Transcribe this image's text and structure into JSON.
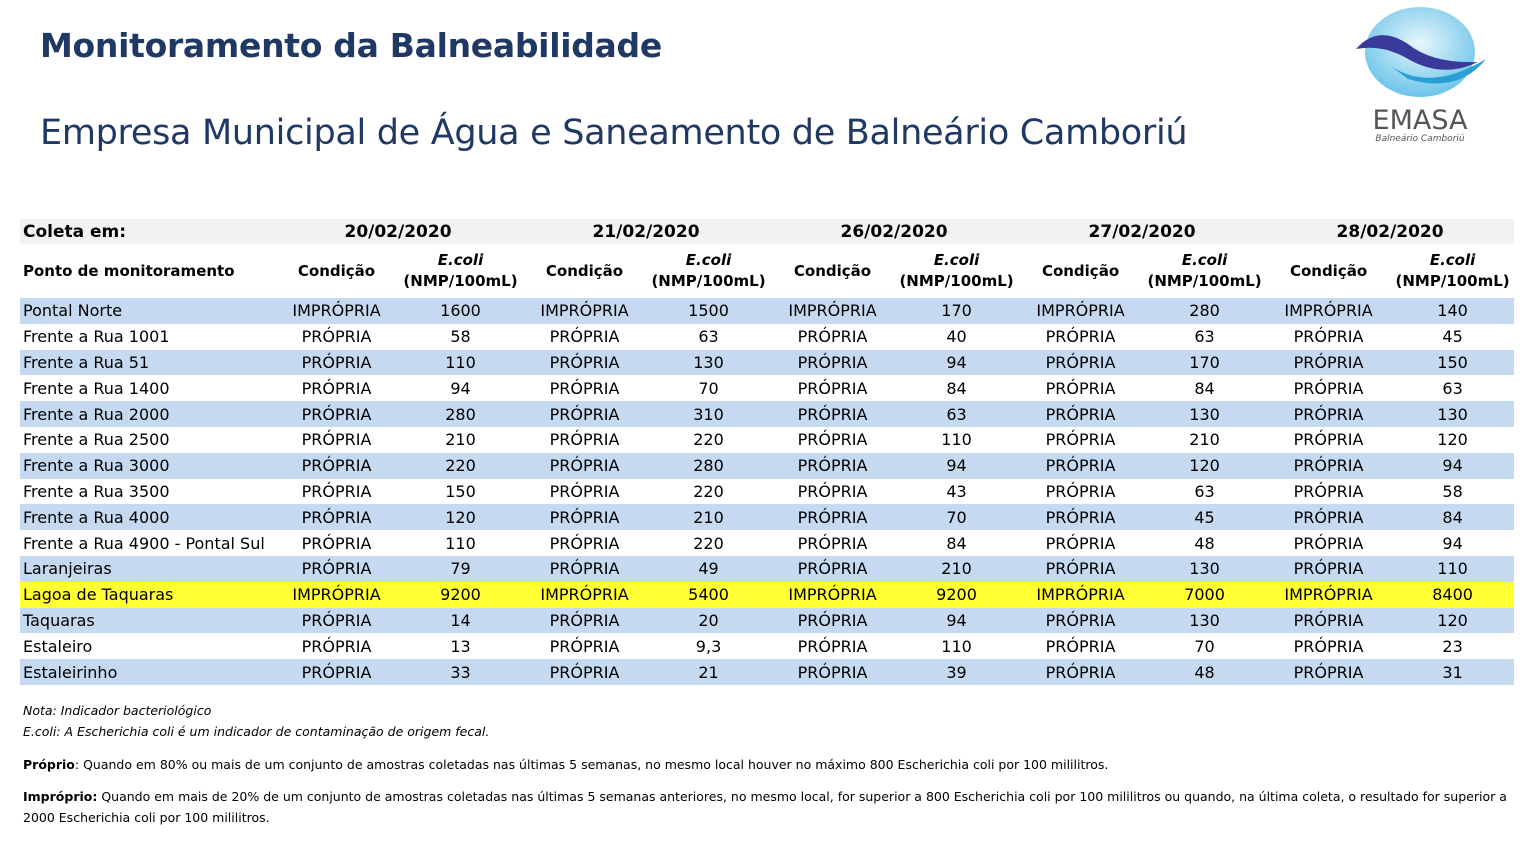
{
  "header": {
    "title": "Monitoramento da Balneabilidade",
    "subtitle": "Empresa Municipal de Água e Saneamento de Balneário Camboriú"
  },
  "logo": {
    "name": "EMASA",
    "place": "Balneário Camboriú"
  },
  "table": {
    "coleta_label": "Coleta em:",
    "dates": [
      "20/02/2020",
      "21/02/2020",
      "26/02/2020",
      "27/02/2020",
      "28/02/2020"
    ],
    "point_label": "Ponto de monitoramento",
    "cond_label": "Condição",
    "ecoli_label": "E.coli",
    "unit_label": "(NMP/100mL)",
    "rows": [
      {
        "name": "Pontal Norte",
        "cells": [
          [
            "IMPRÓPRIA",
            1600
          ],
          [
            "IMPRÓPRIA",
            1500
          ],
          [
            "IMPRÓPRIA",
            170
          ],
          [
            "IMPRÓPRIA",
            280
          ],
          [
            "IMPRÓPRIA",
            140
          ]
        ]
      },
      {
        "name": "Frente a Rua 1001",
        "cells": [
          [
            "PRÓPRIA",
            58
          ],
          [
            "PRÓPRIA",
            63
          ],
          [
            "PRÓPRIA",
            40
          ],
          [
            "PRÓPRIA",
            63
          ],
          [
            "PRÓPRIA",
            45
          ]
        ]
      },
      {
        "name": "Frente a Rua 51",
        "cells": [
          [
            "PRÓPRIA",
            110
          ],
          [
            "PRÓPRIA",
            130
          ],
          [
            "PRÓPRIA",
            94
          ],
          [
            "PRÓPRIA",
            170
          ],
          [
            "PRÓPRIA",
            150
          ]
        ]
      },
      {
        "name": "Frente a Rua 1400",
        "cells": [
          [
            "PRÓPRIA",
            94
          ],
          [
            "PRÓPRIA",
            70
          ],
          [
            "PRÓPRIA",
            84
          ],
          [
            "PRÓPRIA",
            84
          ],
          [
            "PRÓPRIA",
            63
          ]
        ]
      },
      {
        "name": "Frente a Rua 2000",
        "cells": [
          [
            "PRÓPRIA",
            280
          ],
          [
            "PRÓPRIA",
            310
          ],
          [
            "PRÓPRIA",
            63
          ],
          [
            "PRÓPRIA",
            130
          ],
          [
            "PRÓPRIA",
            130
          ]
        ]
      },
      {
        "name": "Frente a Rua 2500",
        "cells": [
          [
            "PRÓPRIA",
            210
          ],
          [
            "PRÓPRIA",
            220
          ],
          [
            "PRÓPRIA",
            110
          ],
          [
            "PRÓPRIA",
            210
          ],
          [
            "PRÓPRIA",
            120
          ]
        ]
      },
      {
        "name": "Frente a Rua 3000",
        "cells": [
          [
            "PRÓPRIA",
            220
          ],
          [
            "PRÓPRIA",
            280
          ],
          [
            "PRÓPRIA",
            94
          ],
          [
            "PRÓPRIA",
            120
          ],
          [
            "PRÓPRIA",
            94
          ]
        ]
      },
      {
        "name": "Frente a Rua 3500",
        "cells": [
          [
            "PRÓPRIA",
            150
          ],
          [
            "PRÓPRIA",
            220
          ],
          [
            "PRÓPRIA",
            43
          ],
          [
            "PRÓPRIA",
            63
          ],
          [
            "PRÓPRIA",
            58
          ]
        ]
      },
      {
        "name": "Frente a Rua 4000",
        "cells": [
          [
            "PRÓPRIA",
            120
          ],
          [
            "PRÓPRIA",
            210
          ],
          [
            "PRÓPRIA",
            70
          ],
          [
            "PRÓPRIA",
            45
          ],
          [
            "PRÓPRIA",
            84
          ]
        ]
      },
      {
        "name": "Frente a Rua 4900 - Pontal Sul",
        "cells": [
          [
            "PRÓPRIA",
            110
          ],
          [
            "PRÓPRIA",
            220
          ],
          [
            "PRÓPRIA",
            84
          ],
          [
            "PRÓPRIA",
            48
          ],
          [
            "PRÓPRIA",
            94
          ]
        ]
      },
      {
        "name": "Laranjeiras",
        "cells": [
          [
            "PRÓPRIA",
            79
          ],
          [
            "PRÓPRIA",
            49
          ],
          [
            "PRÓPRIA",
            210
          ],
          [
            "PRÓPRIA",
            130
          ],
          [
            "PRÓPRIA",
            110
          ]
        ]
      },
      {
        "name": "Lagoa de Taquaras",
        "cells": [
          [
            "IMPRÓPRIA",
            9200
          ],
          [
            "IMPRÓPRIA",
            5400
          ],
          [
            "IMPRÓPRIA",
            9200
          ],
          [
            "IMPRÓPRIA",
            7000
          ],
          [
            "IMPRÓPRIA",
            8400
          ]
        ]
      },
      {
        "name": "Taquaras",
        "cells": [
          [
            "PRÓPRIA",
            14
          ],
          [
            "PRÓPRIA",
            20
          ],
          [
            "PRÓPRIA",
            94
          ],
          [
            "PRÓPRIA",
            130
          ],
          [
            "PRÓPRIA",
            120
          ]
        ]
      },
      {
        "name": "Estaleiro",
        "cells": [
          [
            "PRÓPRIA",
            13
          ],
          [
            "PRÓPRIA",
            "9,3"
          ],
          [
            "PRÓPRIA",
            110
          ],
          [
            "PRÓPRIA",
            70
          ],
          [
            "PRÓPRIA",
            23
          ]
        ]
      },
      {
        "name": "Estaleirinho",
        "cells": [
          [
            "PRÓPRIA",
            33
          ],
          [
            "PRÓPRIA",
            21
          ],
          [
            "PRÓPRIA",
            39
          ],
          [
            "PRÓPRIA",
            48
          ],
          [
            "PRÓPRIA",
            31
          ]
        ]
      }
    ]
  },
  "notes": {
    "nota": "Nota: Indicador bacteriológico",
    "ecoli": "E.coli: A Escherichia coli é um indicador de contaminação de origem fecal.",
    "proprio_label": "Próprio",
    "proprio_text": ": Quando em 80% ou mais de um conjunto de amostras coletadas nas últimas 5 semanas, no mesmo local houver no máximo 800 Escherichia coli por 100 mililitros.",
    "improprio_label": "Impróprio:",
    "improprio_text": " Quando em mais de 20% de um conjunto de amostras coletadas nas últimas 5 semanas anteriores, no mesmo local, for superior a 800 Escherichia coli por 100 mililitros ou quando, na última coleta, o resultado for superior a 2000 Escherichia coli por 100 mililitros."
  }
}
